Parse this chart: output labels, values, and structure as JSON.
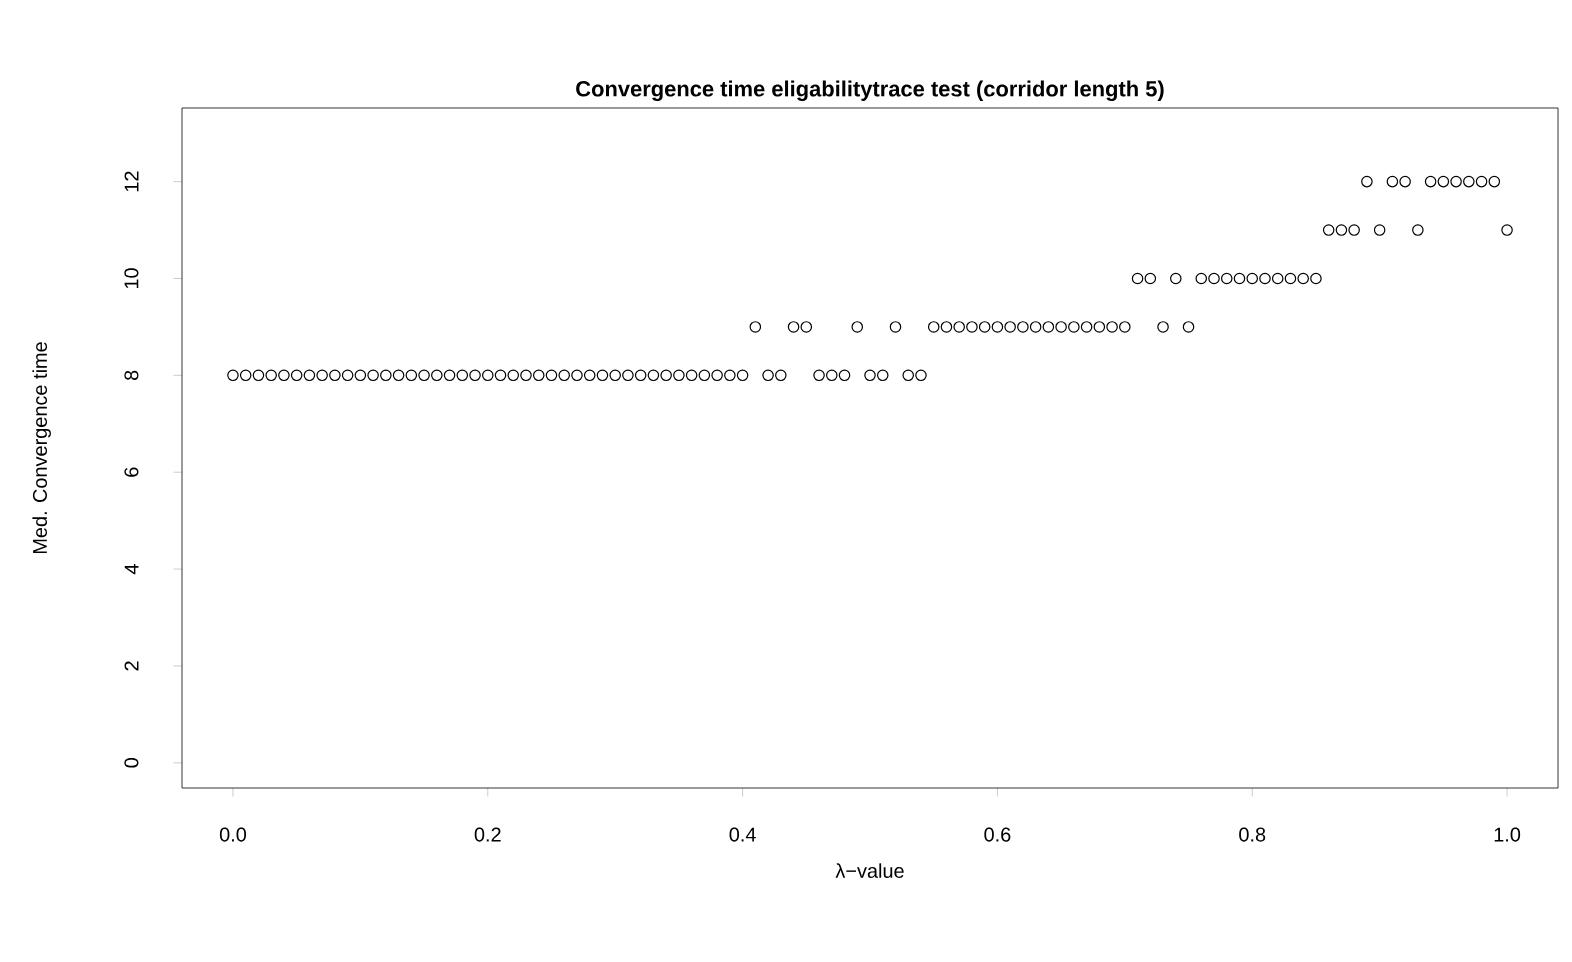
{
  "chart_data": {
    "type": "scatter",
    "title": "Convergence time eligabilitytrace test (corridor length 5)",
    "xlabel": "λ−value",
    "ylabel": "Med. Convergence time",
    "x": [
      0,
      0.01,
      0.02,
      0.03,
      0.04,
      0.05,
      0.06,
      0.07,
      0.08,
      0.09,
      0.1,
      0.11,
      0.12,
      0.13,
      0.14,
      0.15,
      0.16,
      0.17,
      0.18,
      0.19,
      0.2,
      0.21,
      0.22,
      0.23,
      0.24,
      0.25,
      0.26,
      0.27,
      0.28,
      0.29,
      0.3,
      0.31,
      0.32,
      0.33,
      0.34,
      0.35,
      0.36,
      0.37,
      0.38,
      0.39,
      0.4,
      0.41,
      0.42,
      0.43,
      0.44,
      0.45,
      0.46,
      0.47,
      0.48,
      0.49,
      0.5,
      0.51,
      0.52,
      0.53,
      0.54,
      0.55,
      0.56,
      0.57,
      0.58,
      0.59,
      0.6,
      0.61,
      0.62,
      0.63,
      0.64,
      0.65,
      0.66,
      0.67,
      0.68,
      0.69,
      0.7,
      0.71,
      0.72,
      0.73,
      0.74,
      0.75,
      0.76,
      0.77,
      0.78,
      0.79,
      0.8,
      0.81,
      0.82,
      0.83,
      0.84,
      0.85,
      0.86,
      0.87,
      0.88,
      0.89,
      0.9,
      0.91,
      0.92,
      0.93,
      0.94,
      0.95,
      0.96,
      0.97,
      0.98,
      0.99,
      1
    ],
    "values": [
      8,
      8,
      8,
      8,
      8,
      8,
      8,
      8,
      8,
      8,
      8,
      8,
      8,
      8,
      8,
      8,
      8,
      8,
      8,
      8,
      8,
      8,
      8,
      8,
      8,
      8,
      8,
      8,
      8,
      8,
      8,
      8,
      8,
      8,
      8,
      8,
      8,
      8,
      8,
      8,
      8,
      9,
      8,
      8,
      9,
      9,
      8,
      8,
      8,
      9,
      8,
      8,
      9,
      8,
      8,
      9,
      9,
      9,
      9,
      9,
      9,
      9,
      9,
      9,
      9,
      9,
      9,
      9,
      9,
      9,
      9,
      10,
      10,
      9,
      10,
      9,
      10,
      10,
      10,
      10,
      10,
      10,
      10,
      10,
      10,
      10,
      11,
      11,
      11,
      12,
      11,
      12,
      12,
      11,
      12,
      12,
      12,
      12,
      12,
      12,
      11
    ],
    "color": "#000000",
    "marker": "circle",
    "xlim": [
      -0.04,
      1.04
    ],
    "ylim": [
      -0.52,
      13.52
    ],
    "xticks": [
      {
        "value": 0,
        "label": "0.0"
      },
      0.2,
      0.4,
      0.6,
      0.8,
      {
        "value": 1,
        "label": "1.0"
      }
    ],
    "yticks": [
      0,
      2,
      4,
      6,
      8,
      10,
      12
    ]
  }
}
